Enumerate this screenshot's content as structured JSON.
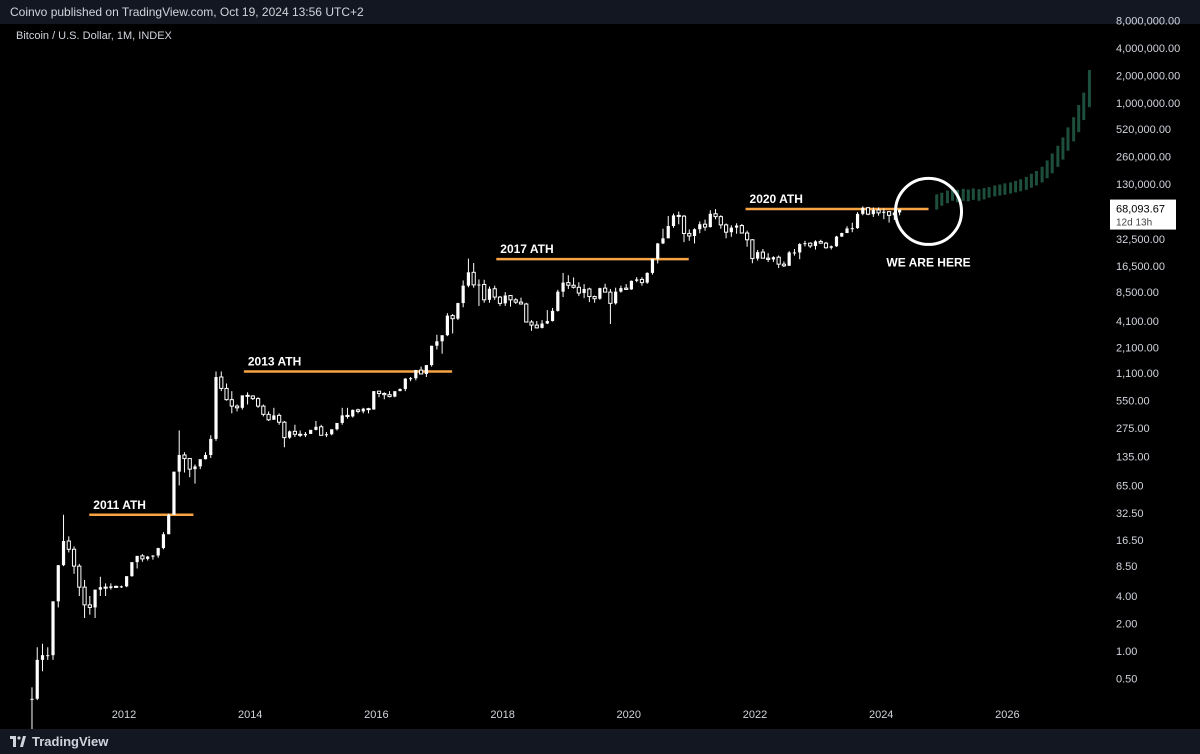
{
  "header": {
    "published": "Coinvo published on TradingView.com, Oct 19, 2024 13:56 UTC+2"
  },
  "symbol": "Bitcoin / U.S. Dollar, 1M, INDEX",
  "footer": {
    "brand": "TradingView",
    "logo_icon": "tradingview-logo-icon"
  },
  "colors": {
    "up": "#ffffff",
    "down": "#ffffff",
    "ath": "#f7a444",
    "projection": "#1e4f3c",
    "circle": "#ffffff"
  },
  "chart_data": {
    "type": "candlestick",
    "yscale": "log",
    "x_ticks": [
      "2012",
      "2014",
      "2016",
      "2018",
      "2020",
      "2022",
      "2024",
      "2026"
    ],
    "y_ticks": [
      "8,000,000.00",
      "4,000,000.00",
      "2,000,000.00",
      "1,000,000.00",
      "520,000.00",
      "260,000.00",
      "130,000.00",
      "32,500.00",
      "16,500.00",
      "8,500.00",
      "4,100.00",
      "2,100.00",
      "1,100.00",
      "550.00",
      "275.00",
      "135.00",
      "65.00",
      "32.50",
      "16.50",
      "8.50",
      "4.00",
      "2.00",
      "1.00",
      "0.50"
    ],
    "price_label": {
      "value": "68,093.67",
      "countdown": "12d 13h"
    },
    "ath_levels": [
      {
        "label": "2011 ATH",
        "price": 31,
        "from": 2011.45,
        "to": 2013.1
      },
      {
        "label": "2013 ATH",
        "price": 1150,
        "from": 2013.9,
        "to": 2017.2
      },
      {
        "label": "2017 ATH",
        "price": 19500,
        "from": 2017.9,
        "to": 2020.95
      },
      {
        "label": "2020 ATH",
        "price": 69000,
        "from": 2021.85,
        "to": 2024.75
      }
    ],
    "annotation": {
      "text": "WE ARE HERE",
      "date": 2024.75,
      "price": 65000
    },
    "candles": [
      [
        0.3,
        0.06,
        0.4,
        0.3
      ],
      [
        0.3,
        0.29,
        1.1,
        0.8
      ],
      [
        0.8,
        0.6,
        1.2,
        0.9
      ],
      [
        0.9,
        0.8,
        1.1,
        0.9
      ],
      [
        0.9,
        0.8,
        3.5,
        3.5
      ],
      [
        3.5,
        3,
        8.7,
        8.7
      ],
      [
        8.7,
        8.5,
        31,
        16
      ],
      [
        16,
        12,
        18,
        13
      ],
      [
        13,
        7,
        14,
        8.5
      ],
      [
        8.5,
        4,
        9,
        5
      ],
      [
        5,
        2.3,
        6,
        3.2
      ],
      [
        3.2,
        2.5,
        4,
        3
      ],
      [
        3,
        2.3,
        4,
        4.7
      ],
      [
        4.7,
        4,
        6.5,
        5
      ],
      [
        5,
        4,
        5.5,
        4.9
      ],
      [
        4.9,
        4.7,
        5.5,
        5.1
      ],
      [
        5.1,
        4.9,
        5.2,
        5
      ],
      [
        5,
        4.9,
        5.2,
        5.1
      ],
      [
        5.1,
        5,
        6.5,
        6.6
      ],
      [
        6.6,
        6.5,
        8,
        9.4
      ],
      [
        9.4,
        8,
        11,
        11
      ],
      [
        11,
        9.5,
        11.5,
        10.2
      ],
      [
        10.2,
        9.8,
        11,
        10.8
      ],
      [
        10.8,
        10,
        11.2,
        11.1
      ],
      [
        11.1,
        10.5,
        13.5,
        13.4
      ],
      [
        13.4,
        13,
        20,
        19
      ],
      [
        19,
        19,
        32,
        31
      ],
      [
        31,
        40,
        90,
        92
      ],
      [
        92,
        65,
        260,
        140
      ],
      [
        140,
        90,
        150,
        128
      ],
      [
        128,
        80,
        130,
        98
      ],
      [
        98,
        68,
        110,
        105
      ],
      [
        105,
        98,
        120,
        126
      ],
      [
        126,
        125,
        150,
        140
      ],
      [
        140,
        130,
        230,
        210
      ],
      [
        210,
        200,
        1150,
        1000
      ],
      [
        1000,
        700,
        1150,
        750
      ],
      [
        750,
        550,
        850,
        565
      ],
      [
        565,
        400,
        700,
        480
      ],
      [
        480,
        420,
        500,
        460
      ],
      [
        460,
        440,
        600,
        630
      ],
      [
        630,
        500,
        680,
        620
      ],
      [
        620,
        560,
        630,
        580
      ],
      [
        580,
        460,
        600,
        480
      ],
      [
        480,
        370,
        500,
        390
      ],
      [
        390,
        330,
        420,
        340
      ],
      [
        340,
        340,
        460,
        380
      ],
      [
        380,
        300,
        400,
        320
      ],
      [
        320,
        170,
        330,
        217
      ],
      [
        217,
        210,
        260,
        254
      ],
      [
        254,
        220,
        300,
        236
      ],
      [
        236,
        220,
        260,
        230
      ],
      [
        230,
        220,
        250,
        238
      ],
      [
        238,
        240,
        260,
        264
      ],
      [
        264,
        260,
        330,
        285
      ],
      [
        285,
        270,
        300,
        230
      ],
      [
        230,
        220,
        250,
        236
      ],
      [
        236,
        230,
        260,
        268
      ],
      [
        268,
        260,
        300,
        314
      ],
      [
        314,
        300,
        460,
        380
      ],
      [
        380,
        350,
        460,
        370
      ],
      [
        370,
        360,
        440,
        437
      ],
      [
        437,
        400,
        450,
        420
      ],
      [
        420,
        400,
        460,
        450
      ],
      [
        450,
        400,
        460,
        440
      ],
      [
        440,
        440,
        700,
        700
      ],
      [
        700,
        600,
        700,
        660
      ],
      [
        660,
        570,
        680,
        640
      ],
      [
        640,
        600,
        700,
        610
      ],
      [
        610,
        600,
        660,
        700
      ],
      [
        700,
        700,
        750,
        740
      ],
      [
        740,
        700,
        970,
        960
      ],
      [
        960,
        900,
        1000,
        970
      ],
      [
        970,
        920,
        1200,
        1190
      ],
      [
        1190,
        1100,
        1300,
        1080
      ],
      [
        1080,
        1000,
        1300,
        1350
      ],
      [
        1350,
        1300,
        2200,
        2200
      ],
      [
        2200,
        2000,
        2900,
        2460
      ],
      [
        2460,
        1800,
        2800,
        2870
      ],
      [
        2870,
        2800,
        5000,
        4700
      ],
      [
        4700,
        3000,
        4900,
        4350
      ],
      [
        4350,
        4200,
        6500,
        6450
      ],
      [
        6450,
        5800,
        11400,
        10000
      ],
      [
        10000,
        9600,
        19800,
        14000
      ],
      [
        14000,
        9500,
        17700,
        10200
      ],
      [
        10200,
        6000,
        11700,
        10300
      ],
      [
        10300,
        6500,
        11600,
        7000
      ],
      [
        7000,
        6500,
        9800,
        9250
      ],
      [
        9250,
        7000,
        10000,
        7500
      ],
      [
        7500,
        6000,
        7700,
        6400
      ],
      [
        6400,
        6000,
        8500,
        7800
      ],
      [
        7800,
        5900,
        7900,
        7000
      ],
      [
        7000,
        6300,
        7300,
        6600
      ],
      [
        6600,
        6200,
        7400,
        6300
      ],
      [
        6300,
        4000,
        6500,
        4000
      ],
      [
        4000,
        3200,
        4200,
        3700
      ],
      [
        3700,
        3400,
        4100,
        3450
      ],
      [
        3450,
        3400,
        4200,
        3850
      ],
      [
        3850,
        3800,
        5400,
        4100
      ],
      [
        4100,
        4050,
        5700,
        5300
      ],
      [
        5300,
        5200,
        9000,
        8600
      ],
      [
        8600,
        7500,
        13800,
        10800
      ],
      [
        10800,
        9200,
        13000,
        10100
      ],
      [
        10100,
        9300,
        12300,
        9600
      ],
      [
        9600,
        7700,
        10900,
        8300
      ],
      [
        8300,
        7300,
        10400,
        9200
      ],
      [
        9200,
        6600,
        9500,
        7600
      ],
      [
        7600,
        6500,
        7800,
        7200
      ],
      [
        7200,
        7000,
        9500,
        9400
      ],
      [
        9400,
        8500,
        10500,
        8500
      ],
      [
        8500,
        3800,
        9200,
        6400
      ],
      [
        6400,
        6200,
        9500,
        8600
      ],
      [
        8600,
        8400,
        10000,
        9400
      ],
      [
        9400,
        9000,
        10400,
        9100
      ],
      [
        9100,
        9000,
        11400,
        11300
      ],
      [
        11300,
        10900,
        12400,
        11700
      ],
      [
        11700,
        10000,
        12400,
        10800
      ],
      [
        10800,
        10500,
        14000,
        13800
      ],
      [
        13800,
        13200,
        19500,
        19700
      ],
      [
        19700,
        17500,
        29300,
        29000
      ],
      [
        29000,
        28500,
        42000,
        33000
      ],
      [
        33000,
        33000,
        58000,
        45000
      ],
      [
        45000,
        43000,
        61500,
        58800
      ],
      [
        58800,
        47000,
        64800,
        57700
      ],
      [
        57700,
        30000,
        59500,
        37300
      ],
      [
        37300,
        31000,
        41300,
        35000
      ],
      [
        35000,
        29000,
        42400,
        41500
      ],
      [
        41500,
        37500,
        50500,
        47100
      ],
      [
        47100,
        40000,
        52900,
        43800
      ],
      [
        43800,
        43300,
        67000,
        61300
      ],
      [
        61300,
        53300,
        69000,
        57000
      ],
      [
        57000,
        42000,
        59000,
        46300
      ],
      [
        46300,
        33000,
        48000,
        38500
      ],
      [
        38500,
        34300,
        45800,
        43200
      ],
      [
        43200,
        37000,
        48200,
        45500
      ],
      [
        45500,
        37600,
        47400,
        37700
      ],
      [
        37700,
        26700,
        40000,
        31800
      ],
      [
        31800,
        17600,
        32300,
        19800
      ],
      [
        19800,
        18800,
        24600,
        23300
      ],
      [
        23300,
        20000,
        25200,
        20000
      ],
      [
        20000,
        18200,
        22700,
        19400
      ],
      [
        19400,
        18200,
        21000,
        20500
      ],
      [
        20500,
        15600,
        21400,
        17200
      ],
      [
        17200,
        16000,
        18400,
        16500
      ],
      [
        16500,
        16500,
        23900,
        23100
      ],
      [
        23100,
        21300,
        25200,
        23100
      ],
      [
        23100,
        19500,
        29200,
        28500
      ],
      [
        28500,
        26900,
        31000,
        29200
      ],
      [
        29200,
        25800,
        29800,
        27200
      ],
      [
        27200,
        24800,
        31400,
        30500
      ],
      [
        30500,
        28800,
        31800,
        29200
      ],
      [
        29200,
        25400,
        30200,
        26000
      ],
      [
        26000,
        24900,
        27500,
        27000
      ],
      [
        27000,
        26600,
        35100,
        34500
      ],
      [
        34500,
        34100,
        38000,
        37700
      ],
      [
        37700,
        37600,
        44700,
        42300
      ],
      [
        42300,
        38500,
        48900,
        42600
      ],
      [
        42600,
        41900,
        63900,
        61100
      ],
      [
        61100,
        59000,
        73800,
        71300
      ],
      [
        71300,
        59100,
        72700,
        60600
      ],
      [
        60600,
        56600,
        71900,
        67500
      ],
      [
        67500,
        58400,
        71900,
        62700
      ],
      [
        62700,
        53500,
        70000,
        64600
      ],
      [
        64600,
        49100,
        65600,
        58900
      ],
      [
        58900,
        52500,
        65000,
        63300
      ],
      [
        63300,
        58900,
        68400,
        68093
      ]
    ],
    "projection": [
      [
        2024.88,
        68000,
        100000
      ],
      [
        2024.96,
        75000,
        104000
      ],
      [
        2025.05,
        80000,
        110000
      ],
      [
        2025.13,
        85000,
        120000
      ],
      [
        2025.21,
        82000,
        112000
      ],
      [
        2025.3,
        85000,
        115000
      ],
      [
        2025.38,
        84000,
        113000
      ],
      [
        2025.46,
        87000,
        116000
      ],
      [
        2025.55,
        85000,
        114000
      ],
      [
        2025.63,
        88000,
        117000
      ],
      [
        2025.71,
        92000,
        120000
      ],
      [
        2025.8,
        95000,
        125000
      ],
      [
        2025.88,
        97000,
        128000
      ],
      [
        2025.96,
        99000,
        132000
      ],
      [
        2026.05,
        102000,
        135000
      ],
      [
        2026.13,
        105000,
        140000
      ],
      [
        2026.21,
        108000,
        146000
      ],
      [
        2026.3,
        112000,
        155000
      ],
      [
        2026.38,
        118000,
        168000
      ],
      [
        2026.46,
        125000,
        180000
      ],
      [
        2026.55,
        135000,
        200000
      ],
      [
        2026.63,
        150000,
        235000
      ],
      [
        2026.71,
        170000,
        280000
      ],
      [
        2026.8,
        200000,
        340000
      ],
      [
        2026.88,
        240000,
        420000
      ],
      [
        2026.96,
        300000,
        540000
      ],
      [
        2027.05,
        380000,
        700000
      ],
      [
        2027.13,
        480000,
        950000
      ],
      [
        2027.21,
        650000,
        1300000
      ],
      [
        2027.3,
        900000,
        2300000
      ]
    ]
  }
}
